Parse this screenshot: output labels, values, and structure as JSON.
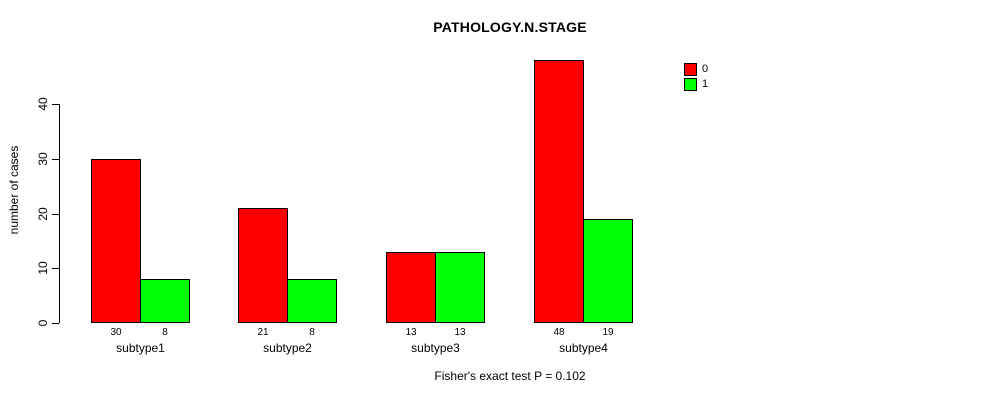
{
  "chart_data": {
    "type": "bar",
    "title": "PATHOLOGY.N.STAGE",
    "xlabel": "",
    "ylabel": "number of cases",
    "categories": [
      "subtype1",
      "subtype2",
      "subtype3",
      "subtype4"
    ],
    "series": [
      {
        "name": "0",
        "color": "#ff0000",
        "values": [
          30,
          21,
          13,
          48
        ]
      },
      {
        "name": "1",
        "color": "#00ff00",
        "values": [
          8,
          8,
          13,
          19
        ]
      }
    ],
    "bar_value_labels": {
      "series_0": [
        30,
        21,
        13,
        48
      ],
      "series_1": [
        8,
        8,
        13,
        19
      ]
    },
    "yticks": [
      0,
      10,
      20,
      30,
      40
    ],
    "ylim": [
      0,
      48
    ],
    "grid": false,
    "legend_position": "top-right-outside",
    "legend_entries": [
      "0",
      "1"
    ],
    "annotation": "Fisher's exact test P = 0.102"
  },
  "colors": {
    "series0": "#ff0000",
    "series1": "#00ff00",
    "axis": "#000000",
    "background": "#ffffff"
  }
}
